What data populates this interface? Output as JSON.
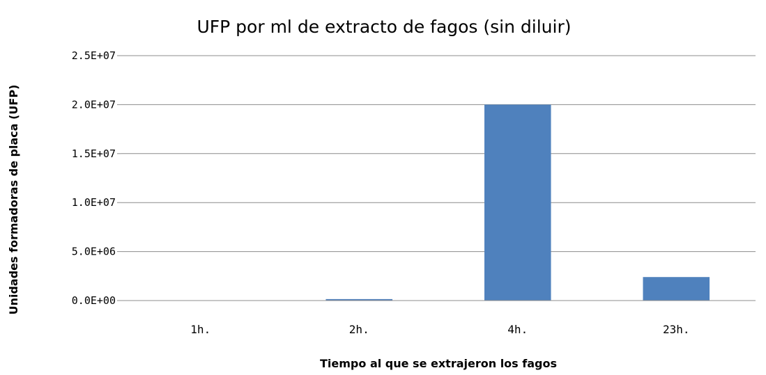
{
  "chart_data": {
    "type": "bar",
    "title": "UFP por ml de extracto de fagos (sin diluir)",
    "xlabel": "Tiempo al que se extrajeron los fagos",
    "ylabel": "Unidades formadoras de placa (UFP)",
    "categories": [
      "1h.",
      "2h.",
      "4h.",
      "23h."
    ],
    "values": [
      30000,
      150000,
      20000000,
      2400000
    ],
    "ylim": [
      0,
      25000000
    ],
    "yticks": [
      0,
      5000000,
      10000000,
      15000000,
      20000000,
      25000000
    ],
    "ytick_labels": [
      "0.0E+00",
      "5.0E+06",
      "1.0E+07",
      "1.5E+07",
      "2.0E+07",
      "2.5E+07"
    ],
    "bar_color": "#4f81bd",
    "grid": true,
    "legend": "none"
  }
}
